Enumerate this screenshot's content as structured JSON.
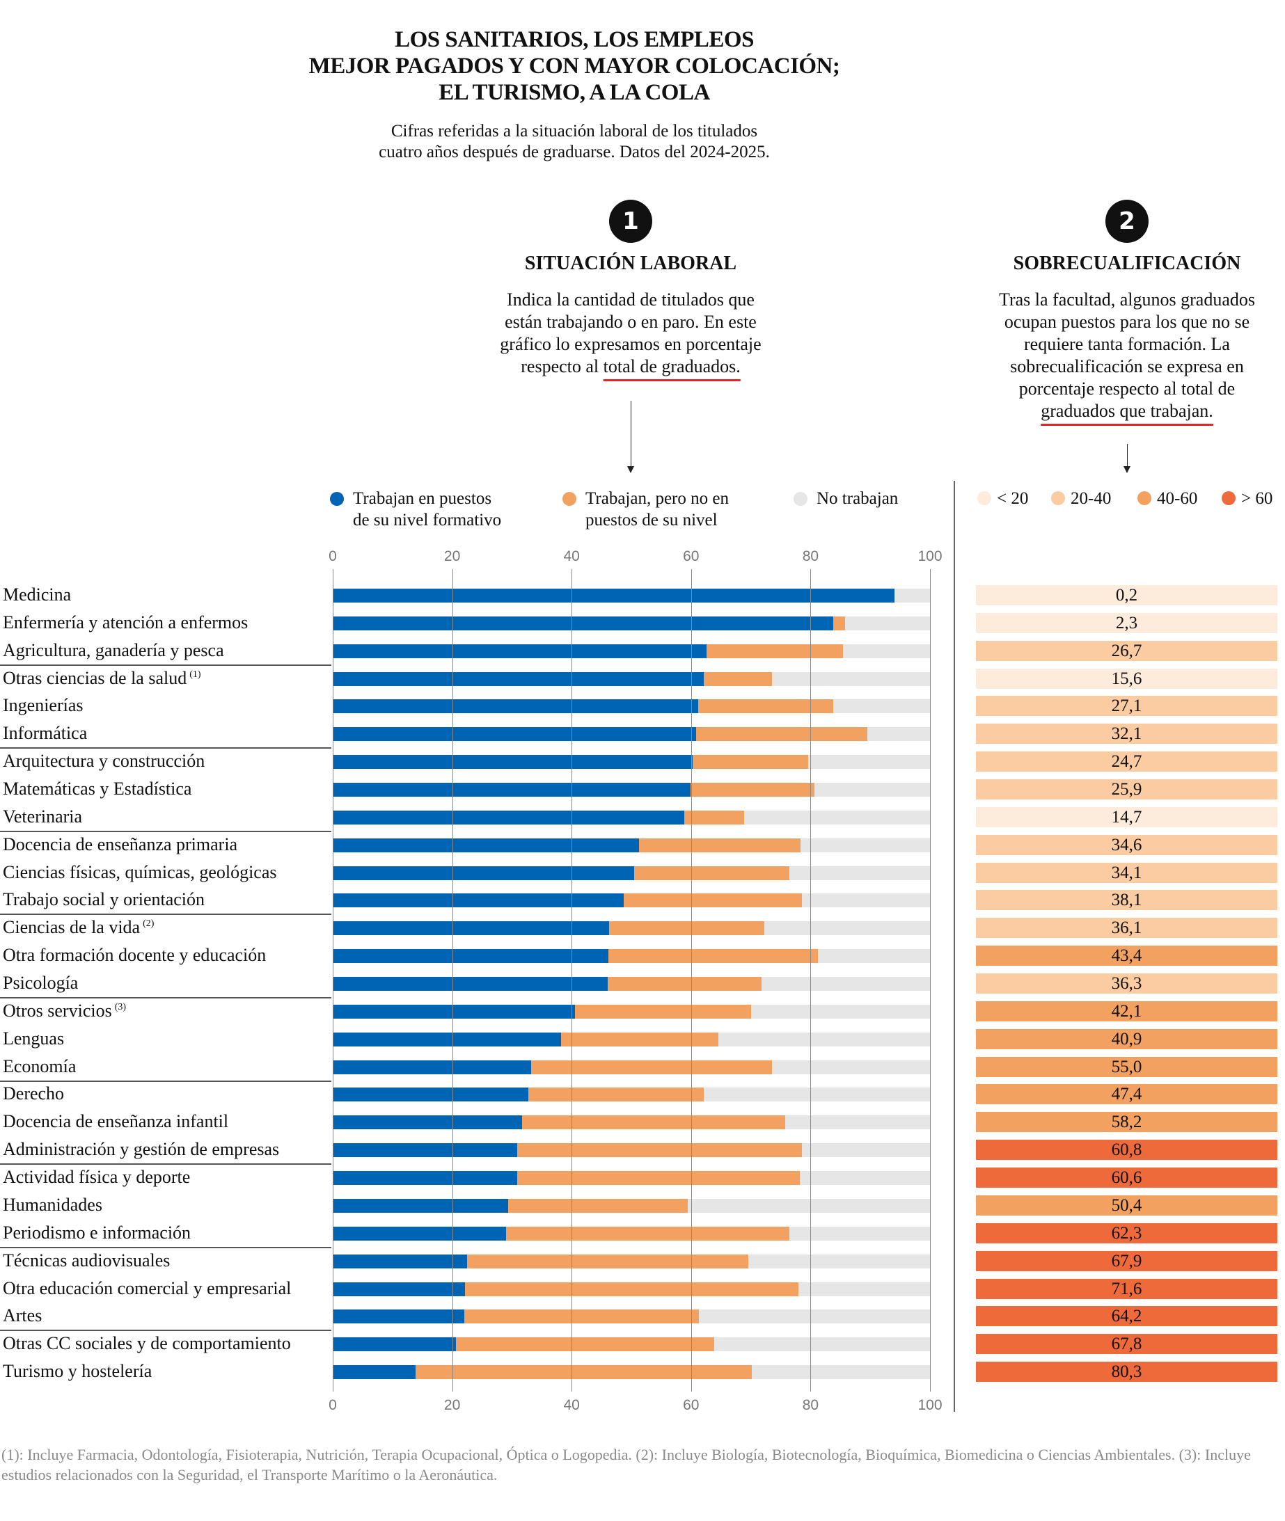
{
  "header": {
    "title_lines": [
      "LOS SANITARIOS, LOS EMPLEOS",
      "MEJOR PAGADOS Y CON MAYOR COLOCACIÓN;",
      "EL TURISMO, A LA COLA"
    ],
    "subtitle_lines": [
      "Cifras referidas a la situación laboral de los titulados",
      "cuatro años después de graduarse. Datos del 2024-2025."
    ]
  },
  "section1": {
    "number": "1",
    "title": "SITUACIÓN LABORAL",
    "desc_lines": [
      "Indica la cantidad de titulados que",
      "están trabajando o en paro. En este",
      "gráfico lo expresamos en porcentaje"
    ],
    "desc_last_plain": "respecto al ",
    "desc_last_underlined": "total de graduados."
  },
  "section2": {
    "number": "2",
    "title": "SOBRECUALIFICACIÓN",
    "desc_lines": [
      "Tras la facultad, algunos graduados",
      "ocupan puestos para los que no se",
      "requiere tanta formación. La",
      "sobrecualificación se expresa en",
      "porcentaje respecto al total de"
    ],
    "desc_last_underlined": "graduados que trabajan."
  },
  "colors": {
    "blue": "#0064b4",
    "orange": "#f2a160",
    "gray": "#e6e6e6",
    "lt20": "#fdebdb",
    "b20_40": "#fbcba1",
    "b40_60": "#f2a160",
    "gt60": "#ee6a3b"
  },
  "chart_data": [
    {
      "type": "bar",
      "stacked": true,
      "orientation": "horizontal",
      "title": "SITUACIÓN LABORAL",
      "xlim": [
        0,
        100
      ],
      "xticks": [
        "0",
        "20",
        "40",
        "60",
        "80",
        "100"
      ],
      "grid": true,
      "legend": [
        {
          "name": "Trabajan en puestos de su nivel formativo",
          "lines": [
            "Trabajan en puestos",
            "de su nivel formativo"
          ],
          "color": "#0064b4"
        },
        {
          "name": "Trabajan, pero no en puestos de su nivel",
          "lines": [
            "Trabajan, pero no en",
            "puestos de su nivel"
          ],
          "color": "#f2a160"
        },
        {
          "name": "No trabajan",
          "lines": [
            "No trabajan"
          ],
          "color": "#e6e6e6"
        }
      ],
      "categories": [
        {
          "label": "Medicina",
          "note": ""
        },
        {
          "label": "Enfermería y atención a enfermos",
          "note": ""
        },
        {
          "label": "Agricultura, ganadería y pesca",
          "note": ""
        },
        {
          "label": "Otras ciencias de la salud",
          "note": "(1)"
        },
        {
          "label": "Ingenierías",
          "note": ""
        },
        {
          "label": "Informática",
          "note": ""
        },
        {
          "label": "Arquitectura y construcción",
          "note": ""
        },
        {
          "label": "Matemáticas y Estadística",
          "note": ""
        },
        {
          "label": "Veterinaria",
          "note": ""
        },
        {
          "label": "Docencia de enseñanza primaria",
          "note": ""
        },
        {
          "label": "Ciencias físicas, químicas, geológicas",
          "note": ""
        },
        {
          "label": "Trabajo social y orientación",
          "note": ""
        },
        {
          "label": "Ciencias de la vida",
          "note": "(2)"
        },
        {
          "label": "Otra formación docente y educación",
          "note": ""
        },
        {
          "label": "Psicología",
          "note": ""
        },
        {
          "label": "Otros servicios",
          "note": "(3)"
        },
        {
          "label": "Lenguas",
          "note": ""
        },
        {
          "label": "Economía",
          "note": ""
        },
        {
          "label": "Derecho",
          "note": ""
        },
        {
          "label": "Docencia de enseñanza infantil",
          "note": ""
        },
        {
          "label": "Administración y gestión de empresas",
          "note": ""
        },
        {
          "label": "Actividad física y deporte",
          "note": ""
        },
        {
          "label": "Humanidades",
          "note": ""
        },
        {
          "label": "Periodismo e información",
          "note": ""
        },
        {
          "label": "Técnicas audiovisuales",
          "note": ""
        },
        {
          "label": "Otra educación comercial y empresarial",
          "note": ""
        },
        {
          "label": "Artes",
          "note": ""
        },
        {
          "label": "Otras CC sociales y de comportamiento",
          "note": ""
        },
        {
          "label": "Turismo y hostelería",
          "note": ""
        }
      ],
      "series": [
        {
          "name": "Trabajan en puestos de su nivel formativo",
          "values": [
            94.0,
            83.8,
            62.6,
            62.1,
            61.2,
            60.8,
            60.2,
            59.9,
            58.9,
            51.3,
            50.5,
            48.7,
            46.3,
            46.1,
            46.0,
            40.6,
            38.2,
            33.2,
            32.8,
            31.7,
            30.9,
            30.9,
            29.4,
            29.0,
            22.5,
            22.2,
            22.0,
            20.6,
            13.9
          ]
        },
        {
          "name": "Trabajan, pero no en puestos de su nivel",
          "values": [
            0.0,
            2.0,
            22.8,
            11.5,
            22.6,
            28.7,
            19.4,
            20.8,
            10.0,
            27.0,
            26.0,
            29.8,
            26.0,
            35.1,
            25.8,
            29.5,
            26.4,
            40.4,
            29.3,
            44.0,
            47.7,
            47.3,
            30.0,
            47.5,
            47.1,
            55.8,
            39.3,
            43.3,
            56.3
          ]
        },
        {
          "name": "No trabajan",
          "values": [
            6.0,
            14.2,
            14.6,
            26.4,
            16.2,
            10.5,
            20.4,
            19.3,
            31.1,
            21.7,
            23.5,
            21.5,
            27.7,
            18.8,
            28.2,
            29.9,
            35.4,
            26.4,
            37.9,
            24.3,
            21.4,
            21.8,
            40.6,
            23.5,
            30.4,
            22.0,
            38.7,
            36.1,
            29.8
          ]
        }
      ]
    },
    {
      "type": "table",
      "title": "SOBRECUALIFICACIÓN",
      "legend": [
        {
          "label": "< 20",
          "color": "#fdebdb"
        },
        {
          "label": "20-40",
          "color": "#fbcba1"
        },
        {
          "label": "40-60",
          "color": "#f2a160"
        },
        {
          "label": "> 60",
          "color": "#ee6a3b"
        }
      ],
      "labels": [
        "0,2",
        "2,3",
        "26,7",
        "15,6",
        "27,1",
        "32,1",
        "24,7",
        "25,9",
        "14,7",
        "34,6",
        "34,1",
        "38,1",
        "36,1",
        "43,4",
        "36,3",
        "42,1",
        "40,9",
        "55,0",
        "47,4",
        "58,2",
        "60,8",
        "60,6",
        "50,4",
        "62,3",
        "67,9",
        "71,6",
        "64,2",
        "67,8",
        "80,3"
      ],
      "values": [
        0.2,
        2.3,
        26.7,
        15.6,
        27.1,
        32.1,
        24.7,
        25.9,
        14.7,
        34.6,
        34.1,
        38.1,
        36.1,
        43.4,
        36.3,
        42.1,
        40.9,
        55.0,
        47.4,
        58.2,
        60.8,
        60.6,
        50.4,
        62.3,
        67.9,
        71.6,
        64.2,
        67.8,
        80.3
      ]
    }
  ],
  "footnote": "(1): Incluye Farmacia, Odontología, Fisioterapia, Nutrición, Terapia Ocupacional, Óptica o Logopedia. (2): Incluye Biología, Biotecnología, Bioquímica, Biomedicina o Ciencias Ambientales. (3): Incluye estudios relacionados con la Seguridad, el Transporte Marítimo o la Aeronáutica."
}
